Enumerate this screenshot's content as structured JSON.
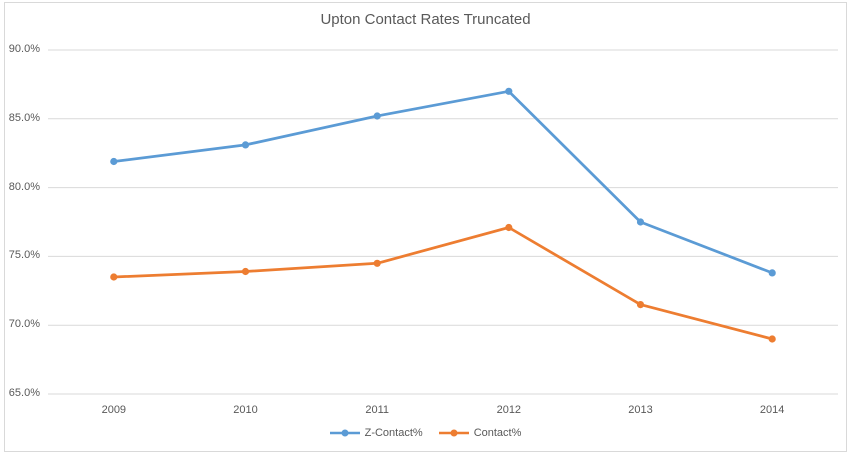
{
  "chart_data": {
    "type": "line",
    "title": "Upton Contact Rates Truncated",
    "categories": [
      "2009",
      "2010",
      "2011",
      "2012",
      "2013",
      "2014"
    ],
    "series": [
      {
        "name": "Z-Contact%",
        "color": "#5B9BD5",
        "marker": "circle",
        "values": [
          81.9,
          83.1,
          85.2,
          87.0,
          77.5,
          73.8
        ]
      },
      {
        "name": "Contact%",
        "color": "#ED7D31",
        "marker": "circle",
        "values": [
          73.5,
          73.9,
          74.5,
          77.1,
          71.5,
          69.0
        ]
      }
    ],
    "xlabel": "",
    "ylabel": "",
    "ylim": [
      65,
      90
    ],
    "ytick_step": 5,
    "ytick_labels_top_down": [
      "90.0%",
      "85.0%",
      "80.0%",
      "75.0%",
      "70.0%",
      "65.0%"
    ],
    "grid": true,
    "gridline_color": "#D9D9D9",
    "border_color": "#D9D9D9",
    "text_color": "#595959",
    "background_color": "#FFFFFF",
    "legend_position": "bottom"
  }
}
